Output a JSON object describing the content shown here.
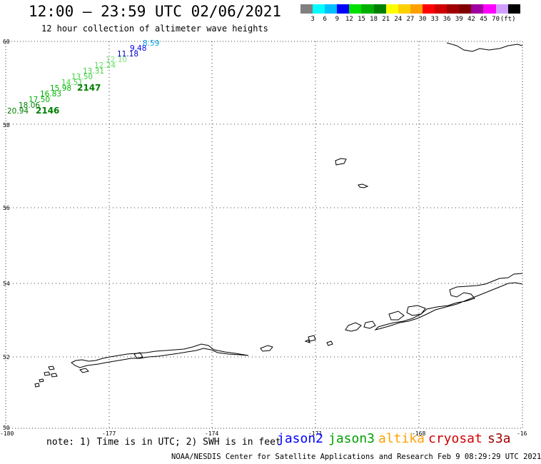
{
  "header": {
    "title": "12:00 – 23:59 UTC 02/06/2021",
    "subtitle": "12 hour collection of altimeter wave heights"
  },
  "legend": {
    "unit": "(ft)",
    "swatches": [
      "#808080",
      "#00ffff",
      "#00c0ff",
      "#0000ff",
      "#00e000",
      "#00b000",
      "#008000",
      "#ffff00",
      "#ffd000",
      "#ffa000",
      "#ff0000",
      "#d00000",
      "#a00000",
      "#800000",
      "#a000a0",
      "#ff00ff",
      "#d0a0ff",
      "#000000"
    ],
    "labels": [
      "3",
      "6",
      "9",
      "12",
      "15",
      "18",
      "21",
      "24",
      "27",
      "30",
      "33",
      "36",
      "39",
      "42",
      "45",
      "70"
    ]
  },
  "axes": {
    "lon_labels": [
      "-180",
      "-177",
      "-174",
      "-171",
      "-168",
      "-16"
    ],
    "lat_labels": [
      "60",
      "58",
      "56",
      "54",
      "52",
      "50"
    ]
  },
  "tracks": [
    {
      "label": "2146",
      "color": "#008000"
    },
    {
      "label": "2147",
      "color": "#008000"
    }
  ],
  "observations": [
    {
      "value": "20.94",
      "color": "#008000"
    },
    {
      "value": "18.06",
      "color": "#008000"
    },
    {
      "value": "17.50",
      "color": "#00b000"
    },
    {
      "value": "16.83",
      "color": "#00b000"
    },
    {
      "value": "15.98",
      "color": "#00b000"
    },
    {
      "value": "14.51",
      "color": "#40d040"
    },
    {
      "value": "13.50",
      "color": "#40d040"
    },
    {
      "value": "13.31",
      "color": "#40d040"
    },
    {
      "value": "12.24",
      "color": "#60e060"
    },
    {
      "value": "12.10",
      "color": "#80e080"
    },
    {
      "value": "11.18",
      "color": "#0000c0"
    },
    {
      "value": "9.48",
      "color": "#0000ff"
    },
    {
      "value": "8.59",
      "color": "#00a0e0"
    }
  ],
  "footer": {
    "note": "note: 1) Time is in UTC; 2) SWH is in feet",
    "satellites": [
      {
        "name": "jason2",
        "color": "#0000ff"
      },
      {
        "name": "jason3",
        "color": "#00a000"
      },
      {
        "name": "altika",
        "color": "#ffa000"
      },
      {
        "name": "cryosat",
        "color": "#d00000"
      },
      {
        "name": "s3a",
        "color": "#a00000"
      }
    ],
    "credit": "NOAA/NESDIS Center for Satellite Applications and Research    Feb  9 08:29:29 UTC 2021"
  }
}
